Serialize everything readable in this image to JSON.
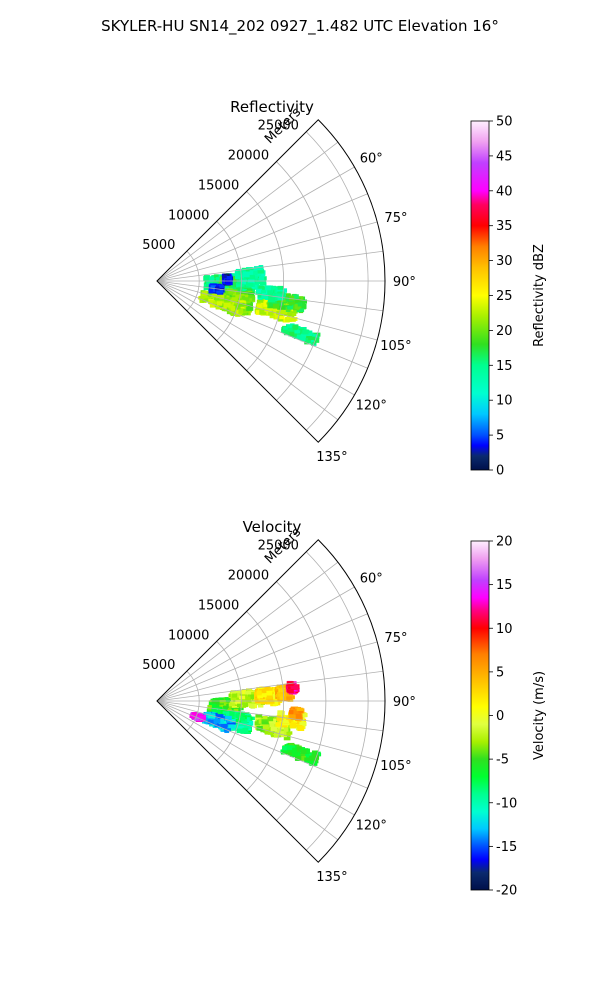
{
  "figure": {
    "suptitle": "SKYLER-HU  SN14_202  0927_1.482 UTC Elevation 16°"
  },
  "chart_data": [
    {
      "type": "polar",
      "title": "Reflectivity",
      "range_label": "Meters",
      "r_ticks": [
        5000,
        10000,
        15000,
        20000,
        25000
      ],
      "r_max": 27000,
      "theta_ticks_deg": [
        60,
        75,
        90,
        105,
        120,
        135
      ],
      "theta_range_deg": [
        45,
        135
      ],
      "grid": true,
      "colorbar": {
        "label": "Reflectivity dBZ",
        "min": 0,
        "max": 50,
        "ticks": [
          0,
          5,
          10,
          15,
          20,
          25,
          30,
          35,
          40,
          45,
          50
        ],
        "stops": [
          [
            0,
            "#00104a"
          ],
          [
            2,
            "#0a2a6e"
          ],
          [
            3.5,
            "#0000ff"
          ],
          [
            5,
            "#0050ff"
          ],
          [
            8,
            "#00c8ff"
          ],
          [
            11,
            "#00ffd0"
          ],
          [
            15,
            "#00ff90"
          ],
          [
            18,
            "#30e020"
          ],
          [
            22,
            "#a8f000"
          ],
          [
            25,
            "#ffff00"
          ],
          [
            29,
            "#ffc000"
          ],
          [
            32,
            "#ff8000"
          ],
          [
            35,
            "#ff0000"
          ],
          [
            38,
            "#ff0060"
          ],
          [
            40,
            "#ff00ff"
          ],
          [
            44,
            "#c040ff"
          ],
          [
            47,
            "#f0a0f0"
          ],
          [
            50,
            "#fff0ff"
          ]
        ]
      },
      "echoes": [
        {
          "az": 92,
          "r": 7500,
          "dr": 3500,
          "daz": 7,
          "value": 15
        },
        {
          "az": 93,
          "r": 8500,
          "dr": 2000,
          "daz": 6,
          "value": 18
        },
        {
          "az": 88,
          "r": 11000,
          "dr": 3000,
          "daz": 6,
          "value": 14
        },
        {
          "az": 100,
          "r": 9500,
          "dr": 3500,
          "daz": 5,
          "value": 16
        },
        {
          "az": 104,
          "r": 9000,
          "dr": 5000,
          "daz": 7,
          "value": 20
        },
        {
          "az": 108,
          "r": 8000,
          "dr": 5000,
          "daz": 5,
          "value": 22
        },
        {
          "az": 103,
          "r": 14500,
          "dr": 4500,
          "daz": 4,
          "value": 23
        },
        {
          "az": 99,
          "r": 15500,
          "dr": 4000,
          "daz": 3,
          "value": 18
        },
        {
          "az": 96,
          "r": 13500,
          "dr": 3000,
          "daz": 3,
          "value": 14
        },
        {
          "az": 110,
          "r": 18000,
          "dr": 4000,
          "daz": 2,
          "value": 15
        },
        {
          "az": 97,
          "r": 7000,
          "dr": 1200,
          "daz": 3,
          "value": 4
        },
        {
          "az": 88,
          "r": 8300,
          "dr": 700,
          "daz": 3,
          "value": 3
        }
      ]
    },
    {
      "type": "polar",
      "title": "Velocity",
      "range_label": "Meters",
      "r_ticks": [
        5000,
        10000,
        15000,
        20000,
        25000
      ],
      "r_max": 27000,
      "theta_ticks_deg": [
        60,
        75,
        90,
        105,
        120,
        135
      ],
      "theta_range_deg": [
        45,
        135
      ],
      "grid": true,
      "colorbar": {
        "label": "Velocity (m/s)",
        "min": -20,
        "max": 20,
        "ticks": [
          -20,
          -15,
          -10,
          -5,
          0,
          5,
          10,
          15,
          20
        ],
        "stops": [
          [
            -20,
            "#00104a"
          ],
          [
            -18,
            "#0a2a6e"
          ],
          [
            -16.5,
            "#0000ff"
          ],
          [
            -15,
            "#0050ff"
          ],
          [
            -13,
            "#00c8ff"
          ],
          [
            -11,
            "#00ffd0"
          ],
          [
            -9,
            "#00ff90"
          ],
          [
            -7,
            "#00ff30"
          ],
          [
            -5,
            "#30e020"
          ],
          [
            -3,
            "#a8f000"
          ],
          [
            -1,
            "#e0ff40"
          ],
          [
            1,
            "#ffff00"
          ],
          [
            4,
            "#ffc000"
          ],
          [
            7,
            "#ff8000"
          ],
          [
            10,
            "#ff0000"
          ],
          [
            12,
            "#ff0080"
          ],
          [
            13.5,
            "#ff00ff"
          ],
          [
            15.5,
            "#c040ff"
          ],
          [
            18,
            "#f0a0f0"
          ],
          [
            20,
            "#fff0ff"
          ]
        ]
      },
      "echoes": [
        {
          "az": 94,
          "r": 8000,
          "dr": 3500,
          "daz": 6,
          "value": -5
        },
        {
          "az": 88,
          "r": 10500,
          "dr": 3500,
          "daz": 5,
          "value": -2
        },
        {
          "az": 87,
          "r": 13000,
          "dr": 2500,
          "daz": 4,
          "value": 2
        },
        {
          "az": 86,
          "r": 15000,
          "dr": 1500,
          "daz": 3,
          "value": 4
        },
        {
          "az": 104,
          "r": 9000,
          "dr": 4500,
          "daz": 6,
          "value": -9
        },
        {
          "az": 108,
          "r": 7500,
          "dr": 3500,
          "daz": 5,
          "value": -13
        },
        {
          "az": 111,
          "r": 5000,
          "dr": 1200,
          "daz": 3,
          "value": 14
        },
        {
          "az": 102,
          "r": 14000,
          "dr": 4000,
          "daz": 4,
          "value": -3
        },
        {
          "az": 98,
          "r": 16000,
          "dr": 3000,
          "daz": 3,
          "value": 1
        },
        {
          "az": 95,
          "r": 16500,
          "dr": 1200,
          "daz": 2,
          "value": 6
        },
        {
          "az": 110,
          "r": 18000,
          "dr": 4000,
          "daz": 2,
          "value": -6
        },
        {
          "az": 84,
          "r": 16000,
          "dr": 800,
          "daz": 2,
          "value": 12
        }
      ]
    }
  ]
}
